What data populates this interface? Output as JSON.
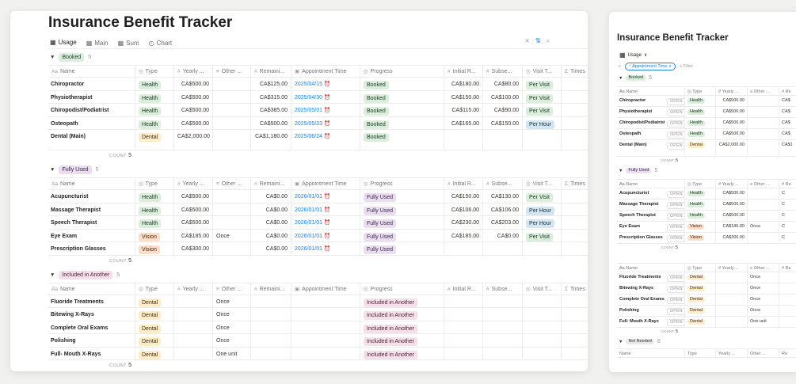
{
  "app": {
    "title": "Insurance Benefit Tracker",
    "views": [
      {
        "label": "Usage",
        "icon": "table-icon",
        "active": true
      },
      {
        "label": "Main",
        "icon": "table-icon"
      },
      {
        "label": "Sum",
        "icon": "table-icon"
      },
      {
        "label": "Chart",
        "icon": "chart-icon"
      }
    ],
    "toolbar_icons": [
      "filter-icon",
      "sort-icon",
      "search-icon"
    ],
    "columns": [
      "Name",
      "Type",
      "Yearly ...",
      "Other ...",
      "Remaini...",
      "Appointment Time",
      "Progress",
      "Initial R...",
      "Subse...",
      "Visit T...",
      "Times"
    ],
    "count_label": "COUNT",
    "groups": [
      {
        "label": "Booked",
        "count": "5",
        "color": "booked",
        "rows": [
          {
            "name": "Chiropractor",
            "type": "Health",
            "yearly": "CA$500.00",
            "other": "",
            "remaining": "CA$125.00",
            "appt": "2025/04/15",
            "progress": "Booked",
            "initial": "CA$180.00",
            "subsequent": "CA$80.00",
            "visit": "Per Visit"
          },
          {
            "name": "Physiotherapist",
            "type": "Health",
            "yearly": "CA$500.00",
            "other": "",
            "remaining": "CA$315.00",
            "appt": "2025/04/30",
            "progress": "Booked",
            "initial": "CA$150.00",
            "subsequent": "CA$100.00",
            "visit": "Per Visit"
          },
          {
            "name": "Chiropodist/Podiatrist",
            "type": "Health",
            "yearly": "CA$500.00",
            "other": "",
            "remaining": "CA$385.00",
            "appt": "2025/05/01",
            "progress": "Booked",
            "initial": "CA$115.00",
            "subsequent": "CA$90.00",
            "visit": "Per Visit"
          },
          {
            "name": "Osteopath",
            "type": "Health",
            "yearly": "CA$500.00",
            "other": "",
            "remaining": "CA$500.00",
            "appt": "2025/05/23",
            "progress": "Booked",
            "initial": "CA$165.00",
            "subsequent": "CA$150.00",
            "visit": "Per Hour"
          },
          {
            "name": "Dental (Main)",
            "type": "Dental",
            "yearly": "CA$2,000.00",
            "other": "",
            "remaining": "CA$1,180.00",
            "appt": "2025/06/24",
            "progress": "Booked",
            "initial": "",
            "subsequent": "",
            "visit": ""
          }
        ]
      },
      {
        "label": "Fully Used",
        "count": "5",
        "color": "used",
        "rows": [
          {
            "name": "Acupuncturist",
            "type": "Health",
            "yearly": "CA$500.00",
            "other": "",
            "remaining": "CA$0.00",
            "appt": "2026/01/01",
            "progress": "Fully Used",
            "initial": "CA$150.00",
            "subsequent": "CA$130.00",
            "visit": "Per Visit"
          },
          {
            "name": "Massage Therapist",
            "type": "Health",
            "yearly": "CA$500.00",
            "other": "",
            "remaining": "CA$0.00",
            "appt": "2026/01/01",
            "progress": "Fully Used",
            "initial": "CA$106.00",
            "subsequent": "CA$106.00",
            "visit": "Per Hour"
          },
          {
            "name": "Speech Therapist",
            "type": "Health",
            "yearly": "CA$500.00",
            "other": "",
            "remaining": "CA$0.00",
            "appt": "2026/01/01",
            "progress": "Fully Used",
            "initial": "CA$230.00",
            "subsequent": "CA$203.00",
            "visit": "Per Hour"
          },
          {
            "name": "Eye Exam",
            "type": "Vision",
            "yearly": "CA$185.00",
            "other": "Once",
            "remaining": "CA$0.00",
            "appt": "2026/01/01",
            "progress": "Fully Used",
            "initial": "CA$185.00",
            "subsequent": "CA$0.00",
            "visit": "Per Visit"
          },
          {
            "name": "Prescription Glasses",
            "type": "Vision",
            "yearly": "CA$300.00",
            "other": "",
            "remaining": "CA$0.00",
            "appt": "2026/01/01",
            "progress": "Fully Used",
            "initial": "",
            "subsequent": "",
            "visit": ""
          }
        ]
      },
      {
        "label": "Included in Another",
        "count": "5",
        "color": "incl",
        "rows": [
          {
            "name": "Fluoride Treatments",
            "type": "Dental",
            "yearly": "",
            "other": "Once",
            "remaining": "",
            "appt": "",
            "progress": "Included in Another",
            "initial": "",
            "subsequent": "",
            "visit": ""
          },
          {
            "name": "Bitewing X-Rays",
            "type": "Dental",
            "yearly": "",
            "other": "Once",
            "remaining": "",
            "appt": "",
            "progress": "Included in Another",
            "initial": "",
            "subsequent": "",
            "visit": ""
          },
          {
            "name": "Complete Oral Exams",
            "type": "Dental",
            "yearly": "",
            "other": "Once",
            "remaining": "",
            "appt": "",
            "progress": "Included in Another",
            "initial": "",
            "subsequent": "",
            "visit": ""
          },
          {
            "name": "Polishing",
            "type": "Dental",
            "yearly": "",
            "other": "Once",
            "remaining": "",
            "appt": "",
            "progress": "Included in Another",
            "initial": "",
            "subsequent": "",
            "visit": ""
          },
          {
            "name": "Full- Mouth X-Rays",
            "type": "Dental",
            "yearly": "",
            "other": "One unit",
            "remaining": "",
            "appt": "",
            "progress": "Included in Another",
            "initial": "",
            "subsequent": "",
            "visit": ""
          }
        ]
      }
    ]
  },
  "side": {
    "title": "Insurance Benefit Tracker",
    "view_label": "Usage",
    "filter_chip": "Appointment Time",
    "filter_add": "+ Filter",
    "open_label": "OPEN",
    "columns": [
      "Name",
      "Type",
      "Yearly ...",
      "Other ...",
      "Re"
    ],
    "groups": [
      {
        "label": "Booked",
        "count": "5",
        "color": "booked",
        "rows": [
          {
            "name": "Chiropractor",
            "type": "Health",
            "yearly": "CA$500.00",
            "other": "",
            "rest": "CA$"
          },
          {
            "name": "Physiotherapist",
            "type": "Health",
            "yearly": "CA$500.00",
            "other": "",
            "rest": "CA$"
          },
          {
            "name": "Chiropodist/Podiatrist",
            "type": "Health",
            "yearly": "CA$500.00",
            "other": "",
            "rest": "CA$"
          },
          {
            "name": "Osteopath",
            "type": "Health",
            "yearly": "CA$500.00",
            "other": "",
            "rest": "CA$"
          },
          {
            "name": "Dental (Main)",
            "type": "Dental",
            "yearly": "CA$2,000.00",
            "other": "",
            "rest": "CA$1"
          }
        ]
      },
      {
        "label": "Fully Used",
        "count": "5",
        "color": "used",
        "rows": [
          {
            "name": "Acupuncturist",
            "type": "Health",
            "yearly": "CA$500.00",
            "other": "",
            "rest": "C"
          },
          {
            "name": "Massage Therapist",
            "type": "Health",
            "yearly": "CA$500.00",
            "other": "",
            "rest": "C"
          },
          {
            "name": "Speech Therapist",
            "type": "Health",
            "yearly": "CA$500.00",
            "other": "",
            "rest": "C"
          },
          {
            "name": "Eye Exam",
            "type": "Vision",
            "yearly": "CA$185.00",
            "other": "Once",
            "rest": "C"
          },
          {
            "name": "Prescription Glasses",
            "type": "Vision",
            "yearly": "CA$300.00",
            "other": "",
            "rest": "C"
          }
        ]
      },
      {
        "label": "",
        "count": "",
        "color": "",
        "rows": [
          {
            "name": "Fluoride Treatments",
            "type": "Dental",
            "yearly": "",
            "other": "Once",
            "rest": ""
          },
          {
            "name": "Bitewing X-Rays",
            "type": "Dental",
            "yearly": "",
            "other": "Once",
            "rest": ""
          },
          {
            "name": "Complete Oral Exams",
            "type": "Dental",
            "yearly": "",
            "other": "Once",
            "rest": ""
          },
          {
            "name": "Polishing",
            "type": "Dental",
            "yearly": "",
            "other": "Once",
            "rest": ""
          },
          {
            "name": "Full- Mouth X-Rays",
            "type": "Dental",
            "yearly": "",
            "other": "One unit",
            "rest": ""
          }
        ]
      }
    ],
    "last_group": {
      "label": "Not Needed",
      "count": "6",
      "color": "needed"
    }
  }
}
